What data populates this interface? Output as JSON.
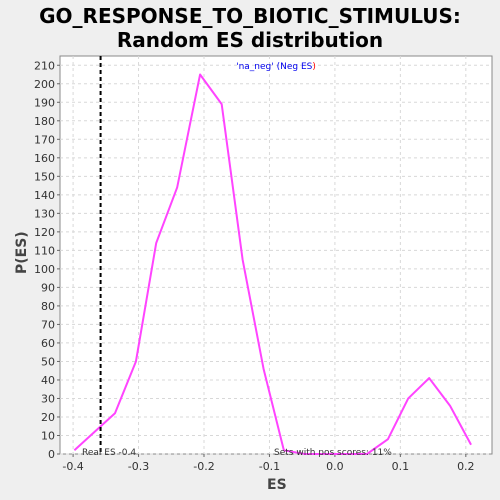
{
  "chart_data": {
    "type": "line",
    "title_line1": "GO_RESPONSE_TO_BIOTIC_STIMULUS:",
    "title_line2": "Random ES distribution",
    "xlabel": "ES",
    "ylabel": "P(ES)",
    "xlim": [
      -0.42,
      0.24
    ],
    "ylim": [
      0,
      215
    ],
    "x_ticks": [
      -0.4,
      -0.3,
      -0.2,
      -0.1,
      0.0,
      0.1,
      0.2
    ],
    "x_tick_labels": [
      "-0.4",
      "-0.3",
      "-0.2",
      "-0.1",
      "0.0",
      "0.1",
      "0.2"
    ],
    "y_ticks": [
      0,
      10,
      20,
      30,
      40,
      50,
      60,
      70,
      80,
      90,
      100,
      110,
      120,
      130,
      140,
      150,
      160,
      170,
      180,
      190,
      200,
      210
    ],
    "grid": true,
    "legend": {
      "position": "top-center",
      "text_part1": "'na_neg' (Neg ES",
      "text_part2": ")"
    },
    "series": [
      {
        "name": "'na_neg' (Neg ES)",
        "color": "#ff44ff",
        "x": [
          -0.398,
          -0.367,
          -0.336,
          -0.304,
          -0.273,
          -0.241,
          -0.206,
          -0.173,
          -0.141,
          -0.109,
          -0.078,
          -0.046,
          -0.015,
          0.017,
          0.049,
          0.081,
          0.112,
          0.144,
          0.176,
          0.208
        ],
        "y": [
          2,
          12,
          22,
          50,
          114,
          144,
          205,
          189,
          105,
          46,
          2,
          0,
          0,
          0,
          0,
          8,
          30,
          41,
          26,
          5
        ]
      }
    ],
    "annotations": {
      "real_es_value": -0.358,
      "real_es_label": "Real ES -0.4",
      "pos_scores_label": "Sets with pos scores: 11%"
    }
  },
  "colors": {
    "background": "#efefef",
    "plot_background": "#ffffff",
    "grid": "#d8d8d8",
    "line": "#ff44ff",
    "legend_blue": "#0000ee",
    "legend_red": "#ff0000",
    "real_es_line": "#000000"
  }
}
